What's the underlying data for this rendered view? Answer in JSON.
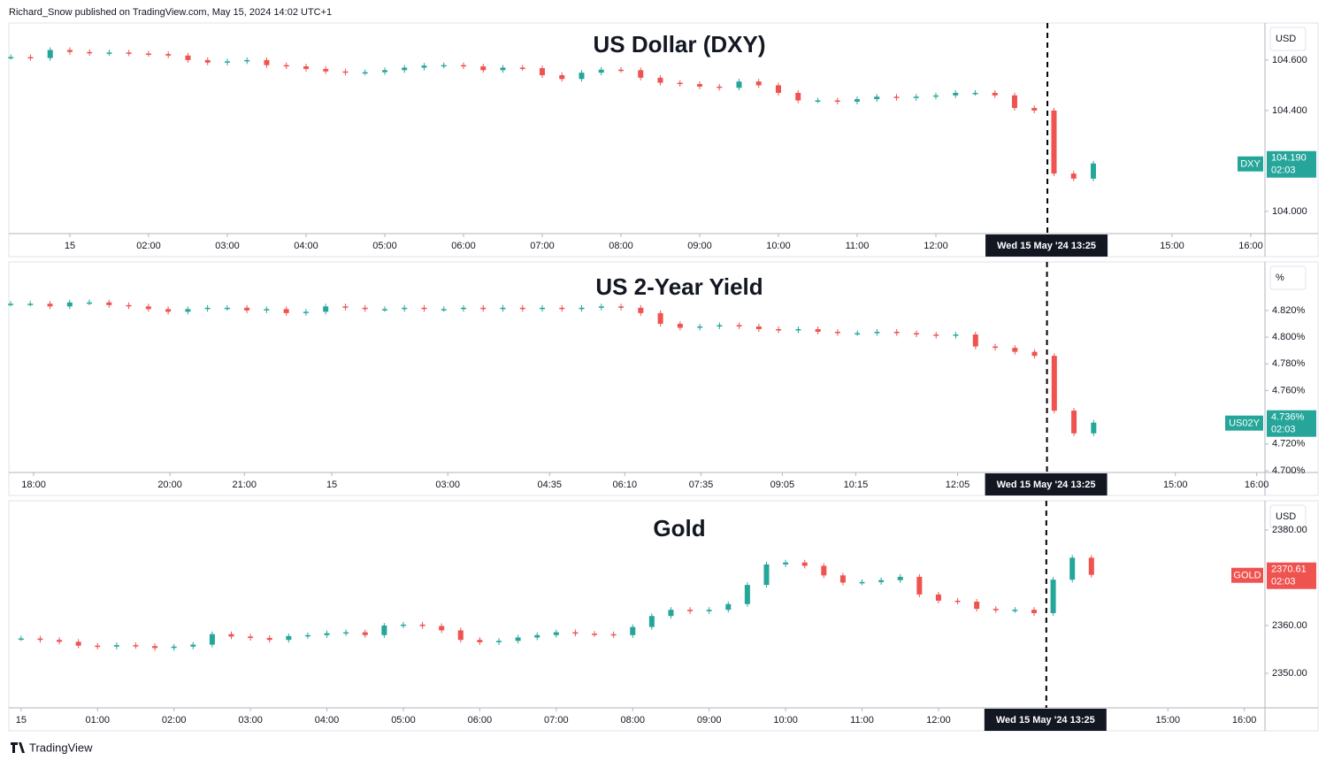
{
  "header": {
    "byline": "Richard_Snow published on TradingView.com, May 15, 2024 14:02 UTC+1"
  },
  "footer": {
    "brand": "TradingView"
  },
  "chart_data": [
    {
      "type": "candlestick",
      "title": "US Dollar (DXY)",
      "title_color": "#3aaa9c",
      "unit": "USD",
      "symbol": "DXY",
      "last_label": "104.190",
      "countdown": "02:03",
      "up_color": "#26a69a",
      "down_color": "#ef5350",
      "x": [
        0.25,
        0.5,
        0.75,
        1,
        1.25,
        1.5,
        1.75,
        2,
        2.25,
        2.5,
        2.75,
        3,
        3.25,
        3.5,
        3.75,
        4,
        4.25,
        4.5,
        4.75,
        5,
        5.25,
        5.5,
        5.75,
        6,
        6.25,
        6.5,
        6.75,
        7,
        7.25,
        7.5,
        7.75,
        8,
        8.25,
        8.5,
        8.75,
        9,
        9.25,
        9.5,
        9.75,
        10,
        10.25,
        10.5,
        10.75,
        11,
        11.25,
        11.5,
        11.75,
        12,
        12.25,
        12.5,
        12.75,
        13,
        13.25,
        13.5,
        13.75,
        14
      ],
      "values": [
        104.612,
        104.608,
        104.64,
        104.632,
        104.628,
        104.63,
        104.626,
        104.624,
        104.618,
        104.6,
        104.59,
        104.595,
        104.6,
        104.58,
        104.575,
        104.565,
        104.555,
        104.55,
        104.552,
        104.56,
        104.57,
        104.578,
        104.58,
        104.575,
        104.56,
        104.57,
        104.568,
        104.54,
        104.525,
        104.55,
        104.562,
        104.56,
        104.53,
        104.51,
        104.505,
        104.495,
        104.49,
        104.515,
        104.5,
        104.47,
        104.44,
        104.44,
        104.435,
        104.445,
        104.455,
        104.45,
        104.455,
        104.46,
        104.47,
        104.47,
        104.46,
        104.41,
        104.4,
        104.15,
        104.13,
        104.19
      ],
      "xlim": [
        0.225,
        16.18
      ],
      "xticks": [
        {
          "value": 1,
          "label": "15"
        },
        {
          "value": 2,
          "label": "02:00"
        },
        {
          "value": 3,
          "label": "03:00"
        },
        {
          "value": 4,
          "label": "04:00"
        },
        {
          "value": 5,
          "label": "05:00"
        },
        {
          "value": 6,
          "label": "06:00"
        },
        {
          "value": 7,
          "label": "07:00"
        },
        {
          "value": 8,
          "label": "08:00"
        },
        {
          "value": 9,
          "label": "09:00"
        },
        {
          "value": 10,
          "label": "10:00"
        },
        {
          "value": 11,
          "label": "11:00"
        },
        {
          "value": 12,
          "label": "12:00"
        },
        {
          "value": 15,
          "label": "15:00"
        },
        {
          "value": 16,
          "label": "16:00"
        }
      ],
      "ylim": [
        103.912,
        104.74
      ],
      "yticks": [
        {
          "value": 104.0,
          "label": "104.000"
        },
        {
          "value": 104.4,
          "label": "104.400"
        },
        {
          "value": 104.6,
          "label": "104.600"
        }
      ],
      "marker": {
        "x": 13.4167,
        "label": "Wed 15 May '24  13:25"
      }
    },
    {
      "type": "candlestick",
      "title": "US 2-Year Yield",
      "title_color": "#4a4a4a",
      "unit": "%",
      "symbol": "US02Y",
      "last_label": "4.736%",
      "countdown": "02:03",
      "up_color": "#26a69a",
      "down_color": "#ef5350",
      "x": [
        0,
        1,
        2,
        3,
        4,
        5,
        6,
        7,
        8,
        9,
        10,
        11,
        12,
        13,
        14,
        15,
        16,
        17,
        18,
        19,
        20,
        21,
        22,
        23,
        24,
        25,
        26,
        27,
        28,
        29,
        30,
        31,
        32,
        33,
        34,
        35,
        36,
        37,
        38,
        39,
        40,
        41,
        42,
        43,
        44,
        45,
        46,
        47,
        48,
        49,
        50,
        51,
        52,
        53,
        54,
        55
      ],
      "values": [
        4.825,
        4.825,
        4.823,
        4.826,
        4.826,
        4.824,
        4.823,
        4.821,
        4.819,
        4.821,
        4.822,
        4.822,
        4.82,
        4.821,
        4.818,
        4.819,
        4.823,
        4.822,
        4.821,
        4.821,
        4.822,
        4.821,
        4.821,
        4.822,
        4.821,
        4.822,
        4.821,
        4.822,
        4.821,
        4.822,
        4.823,
        4.822,
        4.818,
        4.81,
        4.807,
        4.808,
        4.809,
        4.808,
        4.806,
        4.805,
        4.806,
        4.804,
        4.803,
        4.803,
        4.804,
        4.803,
        4.802,
        4.801,
        4.802,
        4.793,
        4.792,
        4.789,
        4.786,
        4.745,
        4.728,
        4.736
      ],
      "xlim": [
        -0.09,
        63.7
      ],
      "xticks": [
        {
          "value": 1.17,
          "label": "18:00"
        },
        {
          "value": 8.09,
          "label": "20:00"
        },
        {
          "value": 11.87,
          "label": "21:00"
        },
        {
          "value": 16.31,
          "label": "15"
        },
        {
          "value": 22.2,
          "label": "03:00"
        },
        {
          "value": 27.37,
          "label": "04:35"
        },
        {
          "value": 31.19,
          "label": "06:10"
        },
        {
          "value": 35.06,
          "label": "07:35"
        },
        {
          "value": 39.19,
          "label": "09:05"
        },
        {
          "value": 42.92,
          "label": "10:15"
        },
        {
          "value": 48.09,
          "label": "12:05"
        },
        {
          "value": 59.15,
          "label": "15:00"
        },
        {
          "value": 63.28,
          "label": "16:00"
        }
      ],
      "ylim": [
        4.6987,
        4.855
      ],
      "yticks": [
        {
          "value": 4.7,
          "label": "4.700%"
        },
        {
          "value": 4.72,
          "label": "4.720%"
        },
        {
          "value": 4.76,
          "label": "4.760%"
        },
        {
          "value": 4.78,
          "label": "4.780%"
        },
        {
          "value": 4.8,
          "label": "4.800%"
        },
        {
          "value": 4.82,
          "label": "4.820%"
        }
      ],
      "marker": {
        "x": 52.63,
        "label": "Wed 15 May '24  13:25"
      }
    },
    {
      "type": "candlestick",
      "title": "Gold",
      "title_color": "#f5a431",
      "unit": "USD",
      "symbol": "GOLD",
      "last_label": "2370.61",
      "countdown": "02:03",
      "up_color": "#26a69a",
      "down_color": "#ef5350",
      "x": [
        0,
        0.25,
        0.5,
        0.75,
        1,
        1.25,
        1.5,
        1.75,
        2,
        2.25,
        2.5,
        2.75,
        3,
        3.25,
        3.5,
        3.75,
        4,
        4.25,
        4.5,
        4.75,
        5,
        5.25,
        5.5,
        5.75,
        6,
        6.25,
        6.5,
        6.75,
        7,
        7.25,
        7.5,
        7.75,
        8,
        8.25,
        8.5,
        8.75,
        9,
        9.25,
        9.5,
        9.75,
        10,
        10.25,
        10.5,
        10.75,
        11,
        11.25,
        11.5,
        11.75,
        12,
        12.25,
        12.5,
        12.75,
        13,
        13.25,
        13.5,
        13.75,
        14
      ],
      "values": [
        2357.3,
        2357.0,
        2356.6,
        2355.8,
        2355.6,
        2355.9,
        2355.7,
        2355.3,
        2355.6,
        2356.0,
        2358.2,
        2357.7,
        2357.4,
        2357.0,
        2357.8,
        2358.0,
        2358.4,
        2358.6,
        2358.0,
        2360.0,
        2360.2,
        2359.9,
        2359.0,
        2357.0,
        2356.5,
        2356.8,
        2357.5,
        2358.0,
        2358.6,
        2358.3,
        2358.2,
        2358.0,
        2359.7,
        2362.0,
        2363.3,
        2363.0,
        2363.3,
        2364.5,
        2368.5,
        2372.8,
        2373.2,
        2372.5,
        2370.5,
        2369.0,
        2369.1,
        2369.5,
        2370.2,
        2366.5,
        2365.2,
        2365.0,
        2363.5,
        2363.2,
        2363.3,
        2362.6,
        2369.6,
        2374.2,
        2370.61
      ],
      "xlim": [
        -0.16,
        16.27
      ],
      "xticks": [
        {
          "value": 0,
          "label": "15"
        },
        {
          "value": 1,
          "label": "01:00"
        },
        {
          "value": 2,
          "label": "02:00"
        },
        {
          "value": 3,
          "label": "03:00"
        },
        {
          "value": 4,
          "label": "04:00"
        },
        {
          "value": 5,
          "label": "05:00"
        },
        {
          "value": 6,
          "label": "06:00"
        },
        {
          "value": 7,
          "label": "07:00"
        },
        {
          "value": 8,
          "label": "08:00"
        },
        {
          "value": 9,
          "label": "09:00"
        },
        {
          "value": 10,
          "label": "10:00"
        },
        {
          "value": 11,
          "label": "11:00"
        },
        {
          "value": 12,
          "label": "12:00"
        },
        {
          "value": 15,
          "label": "15:00"
        },
        {
          "value": 16,
          "label": "16:00"
        }
      ],
      "ylim": [
        2342.78,
        2385.74
      ],
      "yticks": [
        {
          "value": 2350,
          "label": "2350.00"
        },
        {
          "value": 2360,
          "label": "2360.00"
        },
        {
          "value": 2380,
          "label": "2380.00"
        }
      ],
      "marker": {
        "x": 13.41,
        "label": "Wed 15 May '24  13:25"
      }
    }
  ]
}
